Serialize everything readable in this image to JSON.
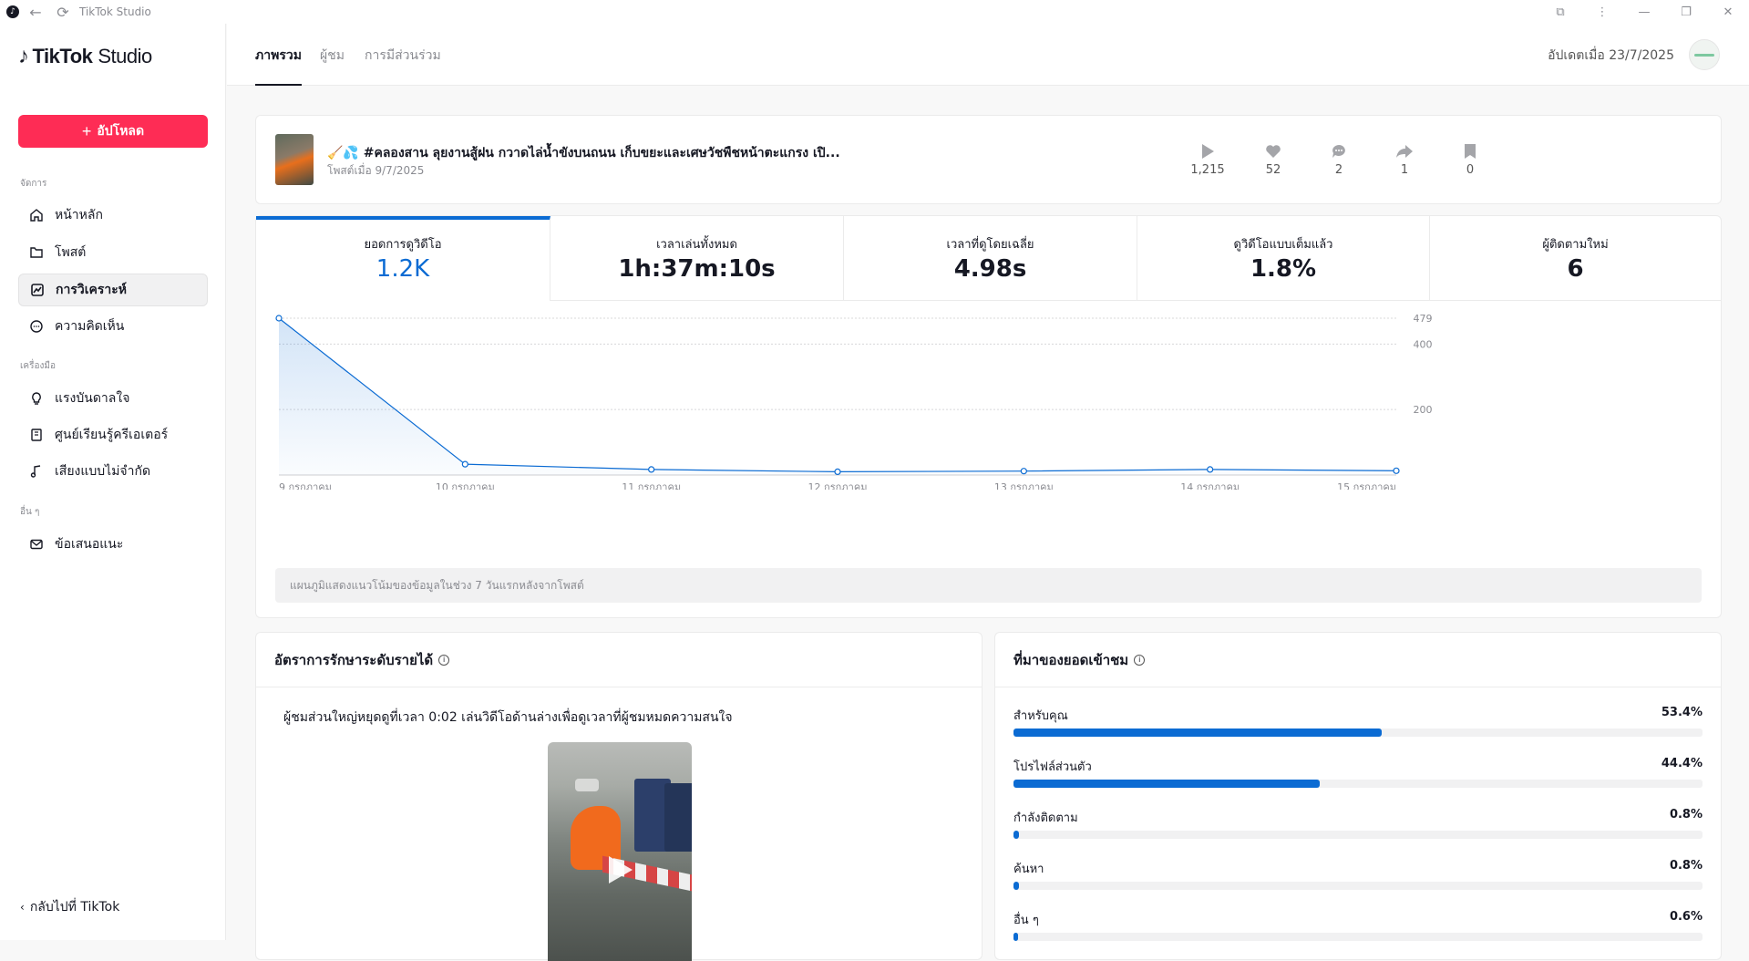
{
  "window": {
    "title": "TikTok Studio"
  },
  "sidebar": {
    "brand": "TikTok",
    "brand_suffix": "Studio",
    "upload_label": "อัปโหลด",
    "sections": {
      "manage": "จัดการ",
      "tools": "เครื่องมือ",
      "others": "อื่น ๆ"
    },
    "items": [
      {
        "label": "หน้าหลัก",
        "icon": "home-icon"
      },
      {
        "label": "โพสต์",
        "icon": "folder-icon"
      },
      {
        "label": "การวิเคราะห์",
        "icon": "analytics-icon",
        "active": true
      },
      {
        "label": "ความคิดเห็น",
        "icon": "comment-icon"
      },
      {
        "label": "แรงบันดาลใจ",
        "icon": "lightbulb-icon"
      },
      {
        "label": "ศูนย์เรียนรู้ครีเอเตอร์",
        "icon": "book-icon"
      },
      {
        "label": "เสียงแบบไม่จำกัด",
        "icon": "music-note-icon"
      },
      {
        "label": "ข้อเสนอแนะ",
        "icon": "mail-icon"
      }
    ],
    "back_label": "กลับไปที่ TikTok"
  },
  "header": {
    "tabs": [
      "ภาพรวม",
      "ผู้ชม",
      "การมีส่วนร่วม"
    ],
    "active_tab": 0,
    "updated": "อัปเดตเมื่อ 23/7/2025"
  },
  "post": {
    "title": "🧹💦 #คลองสาน ลุยงานสู้ฝน กวาดไล่น้ำขังบนถนน เก็บขยะและเศษวัชพืชหน้าตะแกรง เปิ...",
    "date": "โพสต์เมื่อ 9/7/2025",
    "stats": [
      {
        "icon": "play-icon",
        "value": "1,215"
      },
      {
        "icon": "heart-icon",
        "value": "52"
      },
      {
        "icon": "comment-icon",
        "value": "2"
      },
      {
        "icon": "share-icon",
        "value": "1"
      },
      {
        "icon": "bookmark-icon",
        "value": "0"
      }
    ]
  },
  "metrics": [
    {
      "label": "ยอดการดูวิดีโอ",
      "value": "1.2K",
      "active": true
    },
    {
      "label": "เวลาเล่นทั้งหมด",
      "value": "1h:37m:10s"
    },
    {
      "label": "เวลาที่ดูโดยเฉลี่ย",
      "value": "4.98s"
    },
    {
      "label": "ดูวิดีโอแบบเต็มแล้ว",
      "value": "1.8%"
    },
    {
      "label": "ผู้ติดตามใหม่",
      "value": "6"
    }
  ],
  "chart_data": {
    "type": "area",
    "categories": [
      "9 กรกฎาคม",
      "10 กรกฎาคม",
      "11 กรกฎาคม",
      "12 กรกฎาคม",
      "13 กรกฎาคม",
      "14 กรกฎาคม",
      "15 กรกฎาคม"
    ],
    "values": [
      479,
      33,
      17,
      10,
      12,
      17,
      13
    ],
    "y_ticks": [
      200,
      400,
      479
    ],
    "ylim": [
      0,
      479
    ],
    "grid": true,
    "color": "#0b6bd3",
    "note": "แผนภูมิแสดงแนวโน้มของข้อมูลในช่วง 7 วันแรกหลังจากโพสต์"
  },
  "retention": {
    "title": "อัตราการรักษาระดับรายได้",
    "text": "ผู้ชมส่วนใหญ่หยุดดูที่เวลา 0:02 เล่นวิดีโอด้านล่างเพื่อดูเวลาที่ผู้ชมหมดความสนใจ"
  },
  "traffic": {
    "title": "ที่มาของยอดเข้าชม",
    "sources": [
      {
        "name": "สำหรับคุณ",
        "label": "53.4%",
        "value": 53.4
      },
      {
        "name": "โปรไฟล์ส่วนตัว",
        "label": "44.4%",
        "value": 44.4
      },
      {
        "name": "กำลังติดตาม",
        "label": "0.8%",
        "value": 0.8
      },
      {
        "name": "ค้นหา",
        "label": "0.8%",
        "value": 0.8
      },
      {
        "name": "อื่น ๆ",
        "label": "0.6%",
        "value": 0.6
      }
    ]
  }
}
